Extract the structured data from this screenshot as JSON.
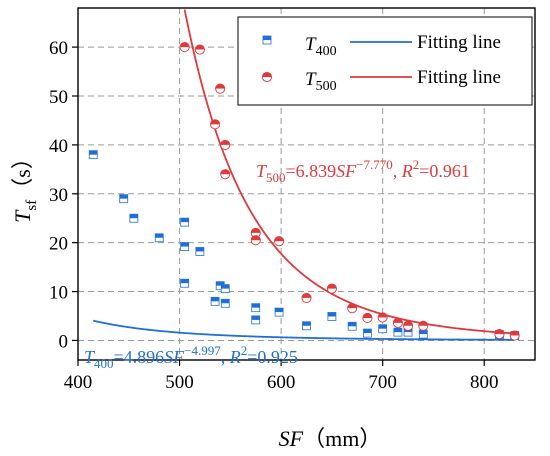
{
  "chart_data": {
    "type": "scatter",
    "title": "",
    "xlabel": {
      "main": "SF",
      "unit": "（mm）"
    },
    "ylabel": {
      "main": "T",
      "sub": "sf",
      "unit": "（s）"
    },
    "xlim": [
      400,
      850
    ],
    "ylim": [
      -4,
      68
    ],
    "xticks": [
      400,
      500,
      600,
      700,
      800
    ],
    "yticks": [
      0,
      10,
      20,
      30,
      40,
      50,
      60
    ],
    "grid": true,
    "legend_position": "top-right",
    "series": [
      {
        "name": "T400",
        "name_main": "T",
        "name_sub": "400",
        "marker": "square-half",
        "color": "#1f6fd6",
        "fit_label": "Fitting line",
        "fit": {
          "a": 48960000000000.0,
          "b": -4.997,
          "x_range": [
            415,
            830
          ]
        },
        "equation": {
          "var": "T",
          "sub": "400",
          "coef": "=4.896",
          "x": "SF",
          "exp": "−4.997",
          "r_label": ", R",
          "r_sup": "2",
          "r_val": "=0.925"
        },
        "points": [
          [
            415,
            38
          ],
          [
            445,
            29
          ],
          [
            455,
            25
          ],
          [
            480,
            21
          ],
          [
            505,
            24.2
          ],
          [
            505,
            19.2
          ],
          [
            505,
            11.7
          ],
          [
            520,
            18.2
          ],
          [
            535,
            8
          ],
          [
            540,
            11.2
          ],
          [
            545,
            10.6
          ],
          [
            545,
            7.6
          ],
          [
            575,
            6.7
          ],
          [
            575,
            4.2
          ],
          [
            598,
            5.8
          ],
          [
            625,
            3
          ],
          [
            650,
            4.9
          ],
          [
            670,
            2.9
          ],
          [
            685,
            1.5
          ],
          [
            700,
            2.4
          ],
          [
            715,
            1.7
          ],
          [
            725,
            1.7
          ],
          [
            740,
            1.3
          ],
          [
            815,
            1.2
          ],
          [
            830,
            1.0
          ]
        ]
      },
      {
        "name": "T500",
        "name_main": "T",
        "name_sub": "500",
        "marker": "circle-half",
        "color": "#e0393c",
        "fit_label": "Fitting line",
        "fit": {
          "a": 6.839e+22,
          "b": -7.77,
          "x_range": [
            505,
            830
          ]
        },
        "equation": {
          "var": "T",
          "sub": "500",
          "coef": "=6.839",
          "x": "SF",
          "exp": "−7.770",
          "r_label": ", R",
          "r_sup": "2",
          "r_val": "=0.961"
        },
        "points": [
          [
            505,
            60
          ],
          [
            520,
            59.5
          ],
          [
            535,
            44.2
          ],
          [
            540,
            51.5
          ],
          [
            545,
            40
          ],
          [
            545,
            34
          ],
          [
            575,
            22
          ],
          [
            575,
            20.5
          ],
          [
            598,
            20.3
          ],
          [
            625,
            8.7
          ],
          [
            650,
            10.6
          ],
          [
            670,
            6.6
          ],
          [
            685,
            4.6
          ],
          [
            700,
            4.7
          ],
          [
            715,
            3.6
          ],
          [
            725,
            3.0
          ],
          [
            740,
            3.0
          ],
          [
            815,
            1.3
          ],
          [
            830,
            1.0
          ]
        ]
      }
    ]
  }
}
